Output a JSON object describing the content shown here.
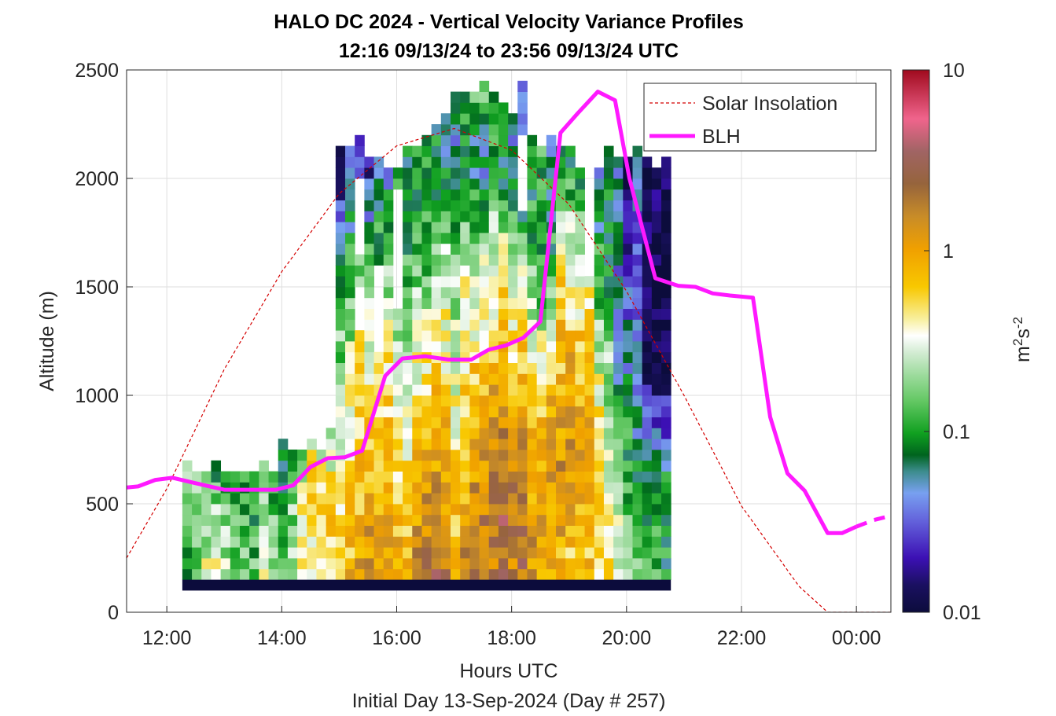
{
  "chart_data": {
    "type": "heatmap",
    "title": "HALO DC 2024 - Vertical Velocity Variance Profiles",
    "subtitle": "12:16 09/13/24 to 23:56 09/13/24  UTC",
    "xlabel": "Hours UTC",
    "xlabel_secondary": "Initial Day 13-Sep-2024 (Day # 257)",
    "ylabel": "Altitude (m)",
    "colorbar_label": "m²s⁻²",
    "x_ticks": [
      "12:00",
      "14:00",
      "16:00",
      "18:00",
      "20:00",
      "22:00",
      "00:00"
    ],
    "x_tick_values": [
      12,
      14,
      16,
      18,
      20,
      22,
      24
    ],
    "xlim": [
      11.3,
      24.6
    ],
    "y_ticks": [
      "0",
      "500",
      "1000",
      "1500",
      "2000",
      "2500"
    ],
    "y_tick_values": [
      0,
      500,
      1000,
      1500,
      2000,
      2500
    ],
    "ylim": [
      0,
      2500
    ],
    "colorbar_ticks": [
      "0.01",
      "0.1",
      "1",
      "10"
    ],
    "colorbar_tick_values": [
      0.01,
      0.1,
      1,
      10
    ],
    "color_scale": "log",
    "grid": true,
    "legend_position": "top-right",
    "legend": [
      "Solar Insolation",
      "BLH"
    ],
    "legend_colors": [
      "#d40000",
      "#ff19ff"
    ],
    "x_bin_start": 12.27,
    "x_bin_width": 0.1667,
    "y_bin_height": 50,
    "columns": [
      {
        "top": 700,
        "profile": [
          0.08,
          0.12,
          0.18,
          0.15
        ]
      },
      {
        "top": 650,
        "profile": [
          0.12,
          0.2,
          0.2,
          0.14
        ]
      },
      {
        "top": 650,
        "profile": [
          0.35,
          0.2,
          0.12,
          0.1
        ]
      },
      {
        "top": 700,
        "profile": [
          0.6,
          0.3,
          0.15,
          0.08
        ]
      },
      {
        "top": 650,
        "profile": [
          0.3,
          0.2,
          0.12,
          0.1
        ]
      },
      {
        "top": 650,
        "profile": [
          0.2,
          0.15,
          0.12,
          0.1
        ]
      },
      {
        "top": 650,
        "profile": [
          0.2,
          0.15,
          0.1,
          0.1
        ]
      },
      {
        "top": 650,
        "profile": [
          0.15,
          0.12,
          0.1,
          0.12
        ]
      },
      {
        "top": 700,
        "profile": [
          0.35,
          0.25,
          0.2,
          0.15
        ]
      },
      {
        "top": 650,
        "profile": [
          0.2,
          0.15,
          0.12,
          0.1
        ]
      },
      {
        "top": 800,
        "profile": [
          0.15,
          0.12,
          0.1,
          0.08
        ]
      },
      {
        "top": 750,
        "profile": [
          0.25,
          0.2,
          0.15,
          0.12
        ]
      },
      {
        "top": 750,
        "profile": [
          0.3,
          0.4,
          0.3,
          0.1
        ]
      },
      {
        "top": 800,
        "profile": [
          0.25,
          0.5,
          0.6,
          0.4
        ]
      },
      {
        "top": 750,
        "profile": [
          0.35,
          0.5,
          0.4,
          0.3
        ]
      },
      {
        "top": 850,
        "profile": [
          0.5,
          0.6,
          0.5,
          0.3
        ]
      },
      {
        "top": 2150,
        "profile": [
          0.6,
          0.35,
          0.2,
          0.1,
          0.015,
          0.012
        ]
      },
      {
        "top": 2150,
        "profile": [
          0.8,
          0.5,
          0.3,
          0.12,
          0.04,
          0.05
        ]
      },
      {
        "top": 2200,
        "profile": [
          1.2,
          0.7,
          0.5,
          0.2,
          0.03,
          0.03
        ]
      },
      {
        "top": 2100,
        "profile": [
          1.5,
          0.8,
          0.4,
          0.2,
          0.02,
          0.04
        ]
      },
      {
        "top": 2100,
        "profile": [
          1.0,
          0.6,
          0.4,
          0.15,
          0.06,
          0.05
        ]
      },
      {
        "top": 2050,
        "profile": [
          1.2,
          0.7,
          0.5,
          0.2,
          0.05,
          0.012
        ]
      },
      {
        "top": 2050,
        "profile": [
          1.1,
          0.6,
          0.35,
          0.15,
          0.08,
          0.07
        ]
      },
      {
        "top": 2150,
        "profile": [
          0.8,
          0.5,
          0.3,
          0.12,
          0.07,
          0.09
        ]
      },
      {
        "top": 2150,
        "profile": [
          1.5,
          0.9,
          0.4,
          0.15,
          0.08,
          0.1
        ]
      },
      {
        "top": 2200,
        "profile": [
          2.0,
          1.0,
          0.5,
          0.15,
          0.1,
          0.03
        ]
      },
      {
        "top": 2250,
        "profile": [
          2.5,
          1.2,
          0.6,
          0.2,
          0.08,
          0.09
        ]
      },
      {
        "top": 2300,
        "profile": [
          2.0,
          1.0,
          0.5,
          0.3,
          0.07,
          0.04
        ]
      },
      {
        "top": 2400,
        "profile": [
          1.0,
          0.5,
          0.3,
          0.2,
          0.04,
          0.1
        ]
      },
      {
        "top": 2400,
        "profile": [
          1.5,
          0.8,
          0.5,
          0.3,
          0.1,
          0.1
        ]
      },
      {
        "top": 2400,
        "profile": [
          2.5,
          1.2,
          0.6,
          0.3,
          0.06,
          0.15
        ]
      },
      {
        "top": 2450,
        "profile": [
          2.0,
          1.5,
          0.7,
          0.35,
          0.05,
          0.2
        ]
      },
      {
        "top": 2400,
        "profile": [
          1.5,
          2.0,
          0.8,
          0.3,
          0.12,
          0.08
        ]
      },
      {
        "top": 2350,
        "profile": [
          2.5,
          2.5,
          0.9,
          0.4,
          0.08,
          0.06
        ]
      },
      {
        "top": 2300,
        "profile": [
          1.5,
          2.0,
          0.7,
          0.25,
          0.05,
          0.07
        ]
      },
      {
        "top": 2450,
        "profile": [
          2.0,
          2.0,
          0.8,
          0.25,
          0.035,
          0.06
        ]
      },
      {
        "top": 2200,
        "profile": [
          1.2,
          1.0,
          0.5,
          0.15,
          0.08,
          0.1
        ]
      },
      {
        "top": 2150,
        "profile": [
          1.0,
          1.0,
          0.5,
          0.1,
          0.12,
          0.08
        ]
      },
      {
        "top": 2200,
        "profile": [
          1.0,
          1.2,
          0.7,
          0.12,
          0.07,
          0.07
        ]
      },
      {
        "top": 2150,
        "profile": [
          0.7,
          1.5,
          0.8,
          0.5,
          0.08,
          0.09
        ]
      },
      {
        "top": 2150,
        "profile": [
          0.6,
          1.2,
          1.0,
          0.4,
          0.1,
          0.012
        ]
      },
      {
        "top": 2050,
        "profile": [
          0.7,
          1.0,
          0.8,
          0.35,
          0.08,
          0.1
        ]
      },
      {
        "top": 2150,
        "profile": [
          0.6,
          1.0,
          0.7,
          0.4,
          0.1,
          0.06
        ]
      },
      {
        "top": 2150,
        "profile": [
          0.5,
          0.6,
          0.3,
          0.12,
          0.05,
          0.05
        ]
      },
      {
        "top": 2150,
        "profile": [
          0.4,
          0.3,
          0.2,
          0.1,
          0.07,
          0.4
        ]
      },
      {
        "top": 2100,
        "profile": [
          0.4,
          0.2,
          0.07,
          0.04,
          0.06,
          0.06
        ]
      },
      {
        "top": 2100,
        "profile": [
          0.25,
          0.12,
          0.06,
          0.03,
          0.012,
          0.012
        ]
      },
      {
        "top": 2150,
        "profile": [
          0.2,
          0.08,
          0.04,
          0.03,
          0.04,
          0.07
        ]
      },
      {
        "top": 2100,
        "profile": [
          0.15,
          0.08,
          0.012,
          0.011,
          0.011,
          0.011
        ]
      },
      {
        "top": 2050,
        "profile": [
          0.12,
          0.08,
          0.011,
          0.01,
          0.015,
          0.012
        ]
      },
      {
        "top": 2100,
        "profile": [
          0.1,
          0.08,
          0.012,
          0.01,
          0.012,
          0.014
        ]
      }
    ],
    "gaps": [
      {
        "col": 18,
        "from": 1650,
        "to": 2000
      },
      {
        "col": 18,
        "from": 1300,
        "to": 1500
      },
      {
        "col": 20,
        "from": 1200,
        "to": 1600
      },
      {
        "col": 22,
        "from": 1400,
        "to": 1950
      },
      {
        "col": 35,
        "from": 1850,
        "to": 2200
      },
      {
        "col": 42,
        "from": 1550,
        "to": 2150
      },
      {
        "col": 43,
        "from": 2050,
        "to": 2150
      },
      {
        "col": 49,
        "from": 2100,
        "to": 2150
      }
    ],
    "surface_band": {
      "from": 100,
      "to": 150,
      "value": 0.01
    },
    "solar_insolation": {
      "x": [
        11.3,
        12.0,
        13.0,
        14.0,
        15.0,
        16.0,
        17.0,
        18.0,
        19.0,
        20.0,
        21.0,
        22.0,
        23.0,
        23.5,
        23.6,
        24.6
      ],
      "y": [
        250,
        570,
        1120,
        1570,
        1930,
        2150,
        2230,
        2130,
        1880,
        1480,
        1000,
        490,
        120,
        0,
        0,
        0
      ]
    },
    "blh": {
      "x": [
        11.3,
        11.5,
        11.8,
        12.1,
        12.5,
        13.0,
        13.5,
        13.9,
        14.2,
        14.5,
        14.8,
        15.1,
        15.4,
        15.8,
        16.1,
        16.5,
        16.9,
        17.3,
        17.6,
        17.9,
        18.2,
        18.5,
        18.85,
        19.15,
        19.5,
        19.8,
        20.05,
        20.5,
        20.9,
        21.2,
        21.5,
        21.8,
        22.2,
        22.5,
        22.8,
        23.1,
        23.5,
        23.75,
        24.0,
        24.3,
        24.6
      ],
      "y": [
        575,
        580,
        610,
        620,
        595,
        565,
        565,
        565,
        585,
        670,
        710,
        715,
        745,
        1090,
        1170,
        1180,
        1165,
        1165,
        1210,
        1230,
        1265,
        1340,
        2210,
        2300,
        2400,
        2360,
        2000,
        1540,
        1505,
        1500,
        1470,
        1460,
        1450,
        900,
        640,
        560,
        365,
        365,
        395,
        425,
        445
      ]
    }
  }
}
